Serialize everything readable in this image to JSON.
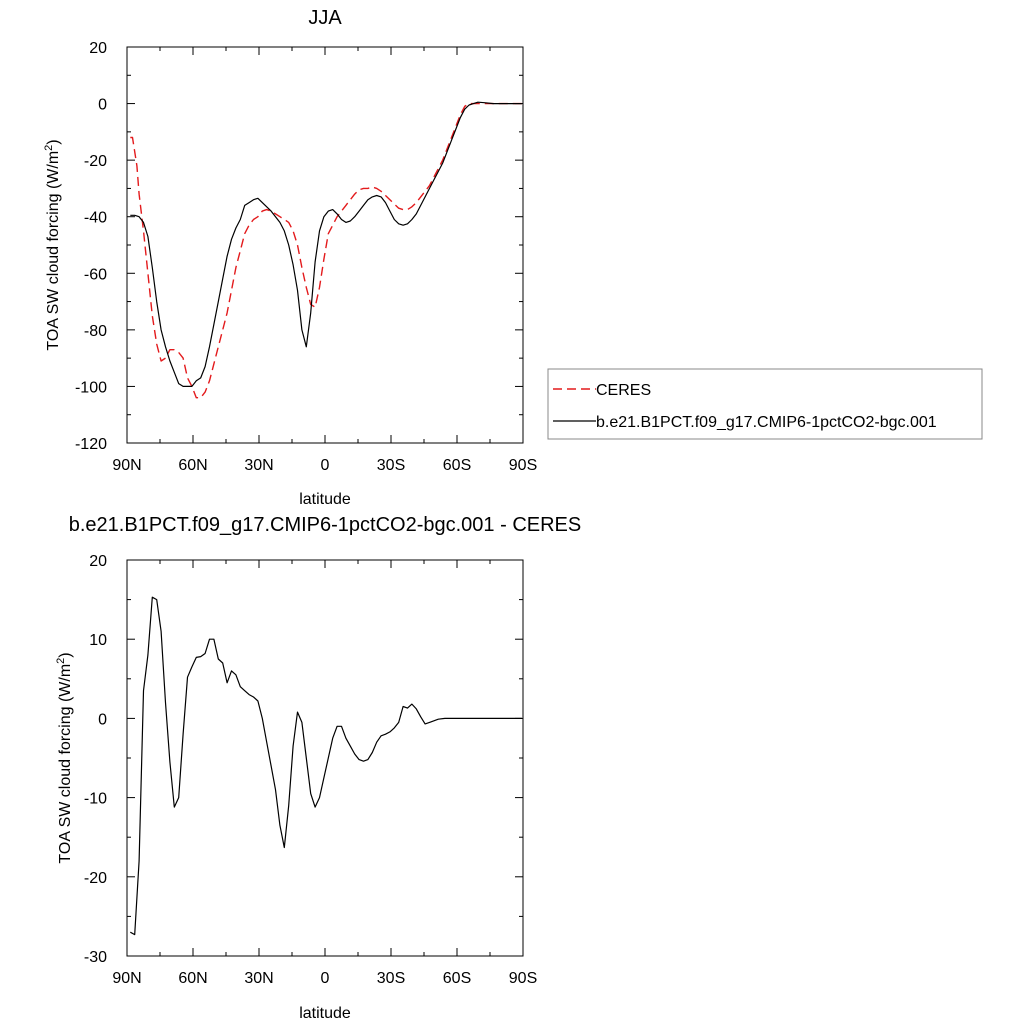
{
  "chart_data": [
    {
      "type": "line",
      "title": "JJA",
      "xlabel": "latitude",
      "ylabel": "TOA SW cloud forcing (W/m",
      "ylabel_sup": "2",
      "ylabel_close": ")",
      "xlim": [
        90,
        -90
      ],
      "ylim": [
        -120,
        20
      ],
      "xticks": [
        90,
        60,
        30,
        0,
        -30,
        -60,
        -90
      ],
      "xticklabels": [
        "90N",
        "60N",
        "30N",
        "0",
        "30S",
        "60S",
        "90S"
      ],
      "yticks": [
        20,
        0,
        -20,
        -40,
        -60,
        -80,
        -100,
        -120
      ],
      "yticklabels": [
        "20",
        "0",
        "-20",
        "-40",
        "-60",
        "-80",
        "-100",
        "-120"
      ],
      "legend": "right",
      "series": [
        {
          "name": "CERES",
          "color": "#e31a1c",
          "dash": true,
          "points": [
            [
              88.5,
              -12
            ],
            [
              87.5,
              -12
            ],
            [
              85.5,
              -22
            ],
            [
              84.5,
              -32
            ],
            [
              82.5,
              -45
            ],
            [
              80.5,
              -60
            ],
            [
              78.5,
              -75
            ],
            [
              76.5,
              -85
            ],
            [
              74.5,
              -91
            ],
            [
              72.5,
              -90
            ],
            [
              70.5,
              -87
            ],
            [
              68.5,
              -87
            ],
            [
              66.5,
              -88
            ],
            [
              64.5,
              -90
            ],
            [
              62.5,
              -97
            ],
            [
              60.5,
              -100
            ],
            [
              58.5,
              -104
            ],
            [
              56.5,
              -104
            ],
            [
              54.5,
              -102
            ],
            [
              52.5,
              -98
            ],
            [
              50.5,
              -92
            ],
            [
              48.5,
              -86
            ],
            [
              46.5,
              -80
            ],
            [
              44.5,
              -74
            ],
            [
              42.5,
              -66
            ],
            [
              40.5,
              -58
            ],
            [
              38.5,
              -52
            ],
            [
              36.5,
              -46
            ],
            [
              34.5,
              -43
            ],
            [
              32.5,
              -41
            ],
            [
              30.5,
              -40
            ],
            [
              28.5,
              -38
            ],
            [
              26.5,
              -37.5
            ],
            [
              24.5,
              -38
            ],
            [
              22.5,
              -39
            ],
            [
              20.5,
              -40
            ],
            [
              18.5,
              -41
            ],
            [
              16.5,
              -42
            ],
            [
              14.5,
              -45
            ],
            [
              12.5,
              -50
            ],
            [
              10.5,
              -58
            ],
            [
              8.5,
              -65
            ],
            [
              6.5,
              -71
            ],
            [
              4.5,
              -72
            ],
            [
              2.5,
              -65
            ],
            [
              0.5,
              -55
            ],
            [
              -1.5,
              -46
            ],
            [
              -3.5,
              -43
            ],
            [
              -5.5,
              -40
            ],
            [
              -7.5,
              -38
            ],
            [
              -9.5,
              -36
            ],
            [
              -11.5,
              -34
            ],
            [
              -13.5,
              -32
            ],
            [
              -15.5,
              -30.5
            ],
            [
              -17.5,
              -30
            ],
            [
              -19.5,
              -30
            ],
            [
              -21.5,
              -29.5
            ],
            [
              -23.5,
              -30
            ],
            [
              -25.5,
              -31
            ],
            [
              -27.5,
              -32.5
            ],
            [
              -29.5,
              -34
            ],
            [
              -31.5,
              -35.5
            ],
            [
              -33.5,
              -37
            ],
            [
              -35.5,
              -37.5
            ],
            [
              -37.5,
              -37.5
            ],
            [
              -39.5,
              -36.5
            ],
            [
              -41.5,
              -35
            ],
            [
              -43.5,
              -33
            ],
            [
              -45.5,
              -31
            ],
            [
              -47.5,
              -29
            ],
            [
              -49.5,
              -26
            ],
            [
              -51.5,
              -23
            ],
            [
              -53.5,
              -20
            ],
            [
              -55.5,
              -16
            ],
            [
              -57.5,
              -12
            ],
            [
              -59.5,
              -8
            ],
            [
              -61.5,
              -4
            ],
            [
              -63.5,
              -1
            ],
            [
              -65.5,
              0
            ],
            [
              -67.5,
              0
            ],
            [
              -69.5,
              0
            ],
            [
              -72.5,
              0
            ],
            [
              -76.5,
              0
            ],
            [
              -80.5,
              0
            ],
            [
              -85.5,
              0
            ],
            [
              -89.5,
              0
            ]
          ]
        },
        {
          "name": "b.e21.B1PCT.f09_g17.CMIP6-1pctCO2-bgc.001",
          "color": "#000000",
          "dash": false,
          "points": [
            [
              88.5,
              -39.5
            ],
            [
              86.5,
              -39.5
            ],
            [
              84.5,
              -40
            ],
            [
              82.5,
              -42
            ],
            [
              80.5,
              -47
            ],
            [
              78.5,
              -58
            ],
            [
              76.5,
              -70
            ],
            [
              74.5,
              -80
            ],
            [
              72.5,
              -86
            ],
            [
              70.5,
              -91
            ],
            [
              68.5,
              -95
            ],
            [
              66.5,
              -99
            ],
            [
              64.5,
              -100
            ],
            [
              62.5,
              -100
            ],
            [
              60.5,
              -100
            ],
            [
              58.5,
              -98
            ],
            [
              56.5,
              -97
            ],
            [
              54.5,
              -93
            ],
            [
              52.5,
              -86
            ],
            [
              50.5,
              -78
            ],
            [
              48.5,
              -70
            ],
            [
              46.5,
              -62
            ],
            [
              44.5,
              -54
            ],
            [
              42.5,
              -48
            ],
            [
              40.5,
              -44
            ],
            [
              38.5,
              -41
            ],
            [
              36.5,
              -36
            ],
            [
              34.5,
              -35
            ],
            [
              32.5,
              -34
            ],
            [
              30.5,
              -33.5
            ],
            [
              28.5,
              -35
            ],
            [
              26.5,
              -36.5
            ],
            [
              24.5,
              -38
            ],
            [
              22.5,
              -40
            ],
            [
              20.5,
              -42
            ],
            [
              18.5,
              -45
            ],
            [
              16.5,
              -50
            ],
            [
              14.5,
              -57
            ],
            [
              12.5,
              -66
            ],
            [
              10.5,
              -80
            ],
            [
              8.5,
              -86
            ],
            [
              6.5,
              -74
            ],
            [
              4.5,
              -56
            ],
            [
              2.5,
              -45
            ],
            [
              0.5,
              -40
            ],
            [
              -1.5,
              -38
            ],
            [
              -3.5,
              -37.5
            ],
            [
              -5.5,
              -39
            ],
            [
              -7.5,
              -41
            ],
            [
              -9.5,
              -42
            ],
            [
              -11.5,
              -41.5
            ],
            [
              -13.5,
              -40
            ],
            [
              -15.5,
              -38
            ],
            [
              -17.5,
              -36
            ],
            [
              -19.5,
              -34
            ],
            [
              -21.5,
              -33
            ],
            [
              -23.5,
              -32.5
            ],
            [
              -25.5,
              -33
            ],
            [
              -27.5,
              -35
            ],
            [
              -29.5,
              -38
            ],
            [
              -31.5,
              -41
            ],
            [
              -33.5,
              -42.5
            ],
            [
              -35.5,
              -43
            ],
            [
              -37.5,
              -42.5
            ],
            [
              -39.5,
              -41
            ],
            [
              -41.5,
              -39
            ],
            [
              -43.5,
              -36
            ],
            [
              -45.5,
              -33
            ],
            [
              -47.5,
              -30
            ],
            [
              -49.5,
              -27
            ],
            [
              -51.5,
              -24
            ],
            [
              -53.5,
              -21
            ],
            [
              -55.5,
              -17
            ],
            [
              -57.5,
              -13
            ],
            [
              -59.5,
              -9
            ],
            [
              -61.5,
              -5
            ],
            [
              -63.5,
              -2
            ],
            [
              -65.5,
              -0.5
            ],
            [
              -67.5,
              0
            ],
            [
              -69.5,
              0.5
            ],
            [
              -72.5,
              0.3
            ],
            [
              -76.5,
              0
            ],
            [
              -80.5,
              0
            ],
            [
              -85.5,
              0
            ],
            [
              -89.5,
              0
            ]
          ]
        }
      ]
    },
    {
      "type": "line",
      "title": "b.e21.B1PCT.f09_g17.CMIP6-1pctCO2-bgc.001 - CERES",
      "xlabel": "latitude",
      "ylabel": "TOA SW cloud forcing (W/m",
      "ylabel_sup": "2",
      "ylabel_close": ")",
      "xlim": [
        90,
        -90
      ],
      "ylim": [
        -30,
        20
      ],
      "xticks": [
        90,
        60,
        30,
        0,
        -30,
        -60,
        -90
      ],
      "xticklabels": [
        "90N",
        "60N",
        "30N",
        "0",
        "30S",
        "60S",
        "90S"
      ],
      "yticks": [
        20,
        10,
        0,
        -10,
        -20,
        -30
      ],
      "yticklabels": [
        "20",
        "10",
        "0",
        "-10",
        "-20",
        "-30"
      ],
      "series": [
        {
          "color": "#000000",
          "dash": false,
          "points": [
            [
              88.5,
              -27
            ],
            [
              86.5,
              -27.3
            ],
            [
              84.5,
              -18
            ],
            [
              82.5,
              3.5
            ],
            [
              80.5,
              8
            ],
            [
              78.5,
              15.3
            ],
            [
              76.5,
              15
            ],
            [
              74.5,
              11
            ],
            [
              72.5,
              2
            ],
            [
              70.5,
              -5.5
            ],
            [
              68.5,
              -11.2
            ],
            [
              66.5,
              -10
            ],
            [
              64.5,
              -2
            ],
            [
              62.5,
              5.2
            ],
            [
              60.5,
              6.5
            ],
            [
              58.5,
              7.7
            ],
            [
              56.5,
              7.8
            ],
            [
              54.5,
              8.2
            ],
            [
              52.5,
              10
            ],
            [
              50.5,
              10
            ],
            [
              48.5,
              7.5
            ],
            [
              46.5,
              7
            ],
            [
              44.5,
              4.5
            ],
            [
              42.5,
              6
            ],
            [
              40.5,
              5.5
            ],
            [
              38.5,
              4
            ],
            [
              36.5,
              3.5
            ],
            [
              34.5,
              3
            ],
            [
              32.5,
              2.7
            ],
            [
              30.5,
              2.2
            ],
            [
              28.5,
              0
            ],
            [
              26.5,
              -3
            ],
            [
              24.5,
              -6
            ],
            [
              22.5,
              -9
            ],
            [
              20.5,
              -13.5
            ],
            [
              18.5,
              -16.3
            ],
            [
              16.5,
              -11
            ],
            [
              14.5,
              -3.5
            ],
            [
              12.5,
              0.8
            ],
            [
              10.5,
              -0.5
            ],
            [
              8.5,
              -5
            ],
            [
              6.5,
              -9.5
            ],
            [
              4.5,
              -11.2
            ],
            [
              2.5,
              -10
            ],
            [
              0.5,
              -7.5
            ],
            [
              -1.5,
              -5
            ],
            [
              -3.5,
              -2.5
            ],
            [
              -5.5,
              -1
            ],
            [
              -7.5,
              -1
            ],
            [
              -9.5,
              -2.5
            ],
            [
              -11.5,
              -3.5
            ],
            [
              -13.5,
              -4.5
            ],
            [
              -15.5,
              -5.2
            ],
            [
              -17.5,
              -5.4
            ],
            [
              -19.5,
              -5.2
            ],
            [
              -21.5,
              -4.3
            ],
            [
              -23.5,
              -3
            ],
            [
              -25.5,
              -2.2
            ],
            [
              -27.5,
              -2
            ],
            [
              -29.5,
              -1.7
            ],
            [
              -31.5,
              -1.2
            ],
            [
              -33.5,
              -0.5
            ],
            [
              -35.5,
              1.5
            ],
            [
              -37.5,
              1.3
            ],
            [
              -39.5,
              1.8
            ],
            [
              -41.5,
              1.2
            ],
            [
              -43.5,
              0.2
            ],
            [
              -45.5,
              -0.7
            ],
            [
              -47.5,
              -0.5
            ],
            [
              -49.5,
              -0.3
            ],
            [
              -51.5,
              -0.1
            ],
            [
              -54.5,
              0
            ],
            [
              -58.5,
              0
            ],
            [
              -62.5,
              0
            ],
            [
              -66.5,
              0
            ],
            [
              -70.5,
              0
            ],
            [
              -74.5,
              0
            ],
            [
              -78.5,
              0
            ],
            [
              -82.5,
              0
            ],
            [
              -89.5,
              0
            ]
          ]
        }
      ]
    }
  ]
}
